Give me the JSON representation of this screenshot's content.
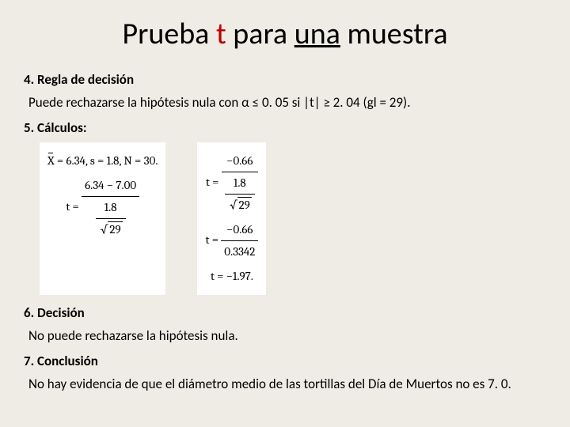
{
  "title": {
    "word1": "Prueba",
    "word2": "t",
    "word3": "para",
    "word4": "una",
    "word5": "muestra"
  },
  "section4": {
    "heading": "4.  Regla de decisión",
    "text": "Puede rechazarse la hipótesis nula con α ≤ 0. 05 si |t| ≥ 2. 04 (gl = 29)."
  },
  "section5": {
    "heading": "5. Cálculos:",
    "left": {
      "line1_xbar": "X",
      "line1_rest": " = 6.34, s = 1.8, N = 30.",
      "line2_prefix": "t = ",
      "line2_num": "6.34 − 7.00",
      "line2_den_num": "1.8",
      "line2_den_rad": "29"
    },
    "right": {
      "r1_prefix": "t = ",
      "r1_num": "−0.66",
      "r1_den_num": "1.8",
      "r1_den_rad": "29",
      "r2_prefix": "t = ",
      "r2_num": "−0.66",
      "r2_den": "0.3342",
      "r3": "t  = −1.97."
    }
  },
  "section6": {
    "heading": "6. Decisión",
    "text": "No puede rechazarse la hipótesis nula."
  },
  "section7": {
    "heading": "7. Conclusión",
    "text": "No hay evidencia de que el diámetro medio de las tortillas del Día de Muertos no es 7. 0."
  },
  "colors": {
    "background": "#efece5",
    "title_red": "#c00000",
    "calc_bg": "#ffffff"
  }
}
